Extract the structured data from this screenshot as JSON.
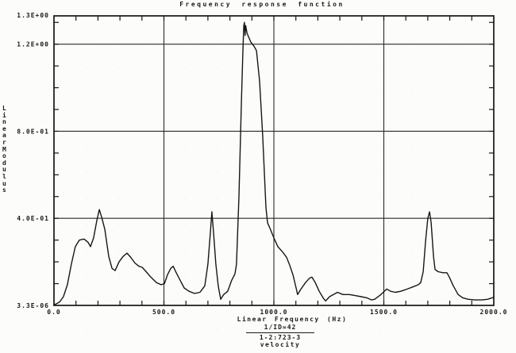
{
  "chart_data": {
    "type": "line",
    "title": "Frequency response function",
    "xlabel": "Linear Frequency (Hz)",
    "ylabel": "Linear Modulus",
    "xlim": [
      0,
      2000
    ],
    "ylim": [
      0,
      1.3
    ],
    "grid": "on",
    "legend_position": "none",
    "x_ticks": [
      {
        "value": 0,
        "label": "0.0"
      },
      {
        "value": 500,
        "label": "500.0"
      },
      {
        "value": 1000,
        "label": "1000.0"
      },
      {
        "value": 1500,
        "label": "1500.0"
      },
      {
        "value": 2000,
        "label": "2000.0"
      }
    ],
    "y_ticks": [
      {
        "value": 1.3,
        "label": "1.3E+00"
      },
      {
        "value": 1.2,
        "label": "1.2E+00"
      },
      {
        "value": 0.8,
        "label": "8.0E-01"
      },
      {
        "value": 0.4,
        "label": "4.0E-01"
      },
      {
        "value": 0.0,
        "label": "3.3E-06"
      }
    ],
    "grid_x": [
      500,
      1000,
      1500
    ],
    "grid_y": [
      0.4,
      0.8,
      1.2
    ],
    "x_minor_tick_step": 100,
    "y_minor_tick_step": 0.1,
    "line_color": "#161616",
    "series": [
      {
        "name": "frequency-response-function",
        "points": [
          [
            0,
            0.002
          ],
          [
            25,
            0.015
          ],
          [
            43,
            0.04
          ],
          [
            61,
            0.095
          ],
          [
            79,
            0.19
          ],
          [
            97,
            0.27
          ],
          [
            115,
            0.3
          ],
          [
            137,
            0.305
          ],
          [
            155,
            0.29
          ],
          [
            166,
            0.27
          ],
          [
            180,
            0.31
          ],
          [
            195,
            0.39
          ],
          [
            206,
            0.44
          ],
          [
            217,
            0.405
          ],
          [
            231,
            0.35
          ],
          [
            249,
            0.225
          ],
          [
            264,
            0.17
          ],
          [
            278,
            0.16
          ],
          [
            296,
            0.2
          ],
          [
            314,
            0.225
          ],
          [
            332,
            0.24
          ],
          [
            350,
            0.22
          ],
          [
            368,
            0.195
          ],
          [
            386,
            0.18
          ],
          [
            401,
            0.175
          ],
          [
            419,
            0.155
          ],
          [
            440,
            0.13
          ],
          [
            466,
            0.105
          ],
          [
            487,
            0.095
          ],
          [
            502,
            0.1
          ],
          [
            516,
            0.14
          ],
          [
            531,
            0.17
          ],
          [
            542,
            0.18
          ],
          [
            556,
            0.15
          ],
          [
            574,
            0.115
          ],
          [
            592,
            0.08
          ],
          [
            614,
            0.065
          ],
          [
            639,
            0.055
          ],
          [
            664,
            0.06
          ],
          [
            686,
            0.09
          ],
          [
            700,
            0.19
          ],
          [
            711,
            0.33
          ],
          [
            718,
            0.43
          ],
          [
            726,
            0.33
          ],
          [
            736,
            0.19
          ],
          [
            747,
            0.09
          ],
          [
            758,
            0.028
          ],
          [
            772,
            0.05
          ],
          [
            790,
            0.065
          ],
          [
            808,
            0.115
          ],
          [
            823,
            0.145
          ],
          [
            830,
            0.19
          ],
          [
            841,
            0.5
          ],
          [
            852,
            0.92
          ],
          [
            859,
            1.16
          ],
          [
            863,
            1.285
          ],
          [
            866,
            1.3
          ],
          [
            869,
            1.24
          ],
          [
            872,
            1.285
          ],
          [
            878,
            1.25
          ],
          [
            895,
            1.21
          ],
          [
            910,
            1.19
          ],
          [
            921,
            1.17
          ],
          [
            935,
            1.03
          ],
          [
            949,
            0.78
          ],
          [
            964,
            0.45
          ],
          [
            971,
            0.38
          ],
          [
            982,
            0.355
          ],
          [
            1000,
            0.31
          ],
          [
            1018,
            0.27
          ],
          [
            1040,
            0.245
          ],
          [
            1058,
            0.22
          ],
          [
            1072,
            0.185
          ],
          [
            1087,
            0.14
          ],
          [
            1101,
            0.08
          ],
          [
            1108,
            0.05
          ],
          [
            1123,
            0.075
          ],
          [
            1144,
            0.105
          ],
          [
            1162,
            0.125
          ],
          [
            1173,
            0.13
          ],
          [
            1188,
            0.105
          ],
          [
            1206,
            0.065
          ],
          [
            1224,
            0.035
          ],
          [
            1235,
            0.02
          ],
          [
            1253,
            0.04
          ],
          [
            1271,
            0.05
          ],
          [
            1289,
            0.06
          ],
          [
            1314,
            0.05
          ],
          [
            1343,
            0.05
          ],
          [
            1372,
            0.045
          ],
          [
            1397,
            0.04
          ],
          [
            1422,
            0.035
          ],
          [
            1444,
            0.025
          ],
          [
            1458,
            0.028
          ],
          [
            1487,
            0.05
          ],
          [
            1513,
            0.075
          ],
          [
            1531,
            0.065
          ],
          [
            1552,
            0.06
          ],
          [
            1577,
            0.065
          ],
          [
            1606,
            0.075
          ],
          [
            1632,
            0.085
          ],
          [
            1657,
            0.095
          ],
          [
            1668,
            0.105
          ],
          [
            1679,
            0.155
          ],
          [
            1690,
            0.295
          ],
          [
            1700,
            0.4
          ],
          [
            1708,
            0.43
          ],
          [
            1715,
            0.38
          ],
          [
            1726,
            0.225
          ],
          [
            1733,
            0.165
          ],
          [
            1747,
            0.155
          ],
          [
            1769,
            0.15
          ],
          [
            1787,
            0.15
          ],
          [
            1798,
            0.13
          ],
          [
            1816,
            0.09
          ],
          [
            1838,
            0.05
          ],
          [
            1859,
            0.035
          ],
          [
            1884,
            0.028
          ],
          [
            1913,
            0.025
          ],
          [
            1946,
            0.025
          ],
          [
            1971,
            0.028
          ],
          [
            1993,
            0.035
          ],
          [
            2000,
            0.038
          ]
        ]
      }
    ]
  },
  "annotation": {
    "line1": "1/ID=42",
    "line2": "1-2:723-3",
    "line3": "velocity"
  }
}
